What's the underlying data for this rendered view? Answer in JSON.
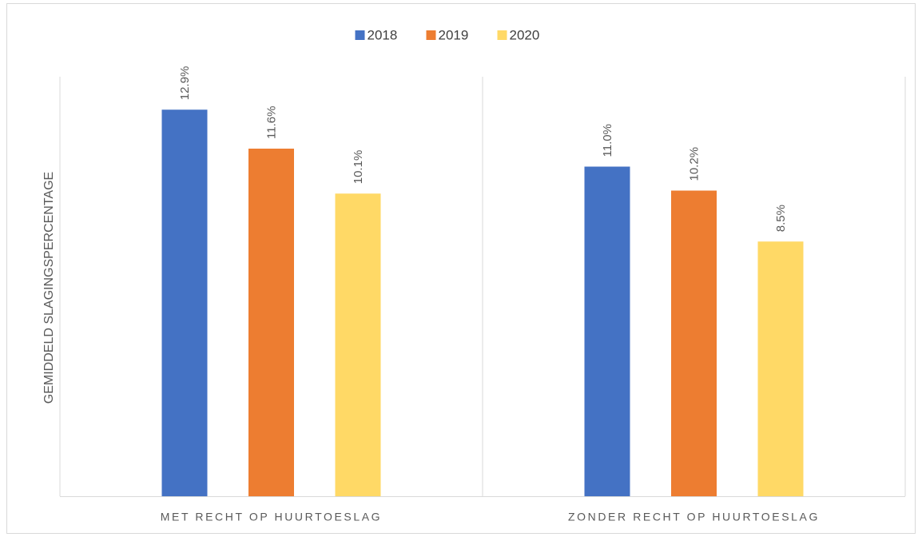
{
  "chart_data": {
    "type": "bar",
    "ylabel": "GEMIDDELD SLAGINGSPERCENTAGE",
    "categories": [
      "MET RECHT OP HUURTOESLAG",
      "ZONDER RECHT OP HUURTOESLAG"
    ],
    "series": [
      {
        "name": "2018",
        "color": "#4472c4",
        "values": [
          12.9,
          11.0
        ],
        "value_labels": [
          "12.9%",
          "11.0%"
        ]
      },
      {
        "name": "2019",
        "color": "#ed7d31",
        "values": [
          11.6,
          10.2
        ],
        "value_labels": [
          "11.6%",
          "10.2%"
        ]
      },
      {
        "name": "2020",
        "color": "#ffd966",
        "values": [
          10.1,
          8.5
        ],
        "value_labels": [
          "10.1%",
          "8.5%"
        ]
      }
    ],
    "ylim": [
      0,
      14
    ],
    "legend": "top"
  }
}
